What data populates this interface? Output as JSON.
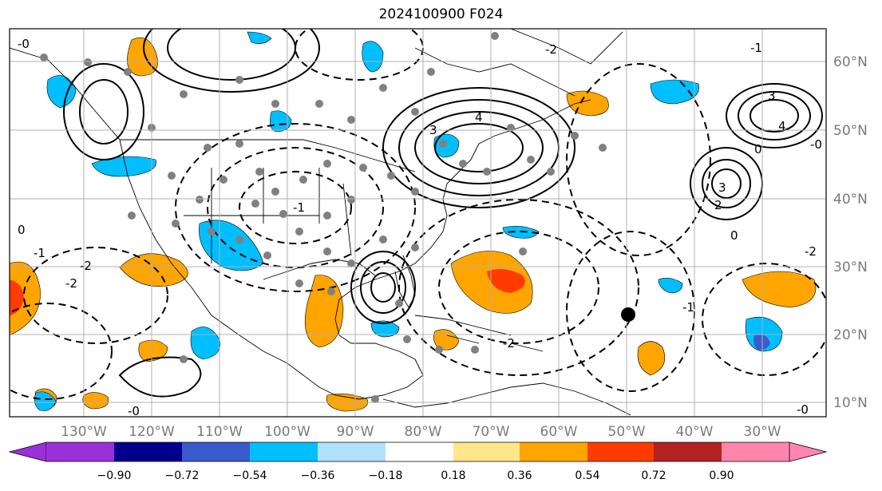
{
  "title": "2024100900 F024",
  "map": {
    "lon_labels": [
      "130°W",
      "120°W",
      "110°W",
      "100°W",
      "90°W",
      "80°W",
      "70°W",
      "60°W",
      "50°W",
      "40°W",
      "30°W"
    ],
    "lat_labels": [
      "60°N",
      "50°N",
      "40°N",
      "30°N",
      "20°N",
      "10°N"
    ],
    "contour_labels": [
      "-0",
      "3",
      "4",
      "3",
      "4",
      "3",
      "0",
      "-1",
      "0",
      "-1",
      "-2",
      "-2",
      "-2",
      "-1",
      "2",
      "-0",
      "-0",
      "-2",
      "-1",
      "0",
      "-0",
      "-2"
    ],
    "colors": {
      "land_outline": "#000000",
      "grid": "#b0b0b0",
      "dots": "#808080",
      "storm_marker": "#000000"
    }
  },
  "colorbar": {
    "ticks": [
      "−0.90",
      "−0.72",
      "−0.54",
      "−0.36",
      "−0.18",
      "0.18",
      "0.36",
      "0.54",
      "0.72",
      "0.90"
    ],
    "colors": [
      "#9b30d9",
      "#00008b",
      "#3a5bcd",
      "#00bfff",
      "#b0e2ff",
      "#ffffff",
      "#ffe78a",
      "#ffa500",
      "#ff3b00",
      "#b22222",
      "#ff85ad"
    ]
  }
}
